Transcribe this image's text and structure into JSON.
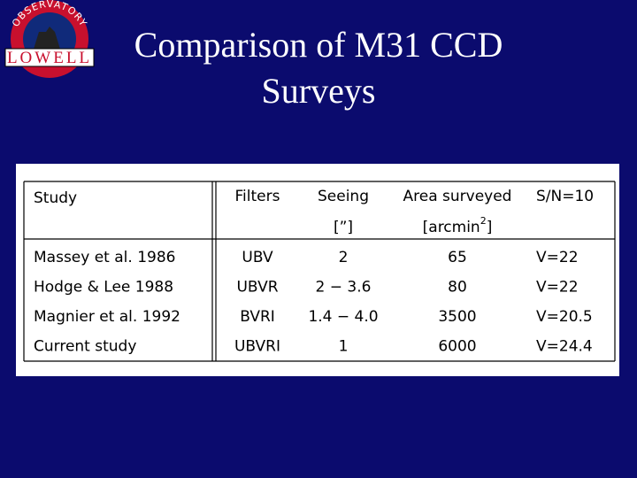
{
  "logo": {
    "arc": "OBSERVATORY",
    "name": "LOWELL"
  },
  "title": [
    "Comparison of M31 CCD",
    "Surveys"
  ],
  "table": {
    "header": [
      "Study",
      "Filters",
      "Seeing",
      "Area surveyed",
      "S/N=10"
    ],
    "units": {
      "seeing": "[”]",
      "area_open": "[arcmin",
      "area_sup": "2",
      "area_close": "]"
    },
    "rows": [
      [
        "Massey et al. 1986",
        "UBV",
        "2",
        "65",
        "V=22"
      ],
      [
        "Hodge & Lee 1988",
        "UBVR",
        "2 − 3.6",
        "80",
        "V=22"
      ],
      [
        "Magnier et al. 1992",
        "BVRI",
        "1.4 − 4.0",
        "3500",
        "V=20.5"
      ],
      [
        "Current study",
        "UBVRI",
        "1",
        "6000",
        "V=24.4"
      ]
    ]
  }
}
